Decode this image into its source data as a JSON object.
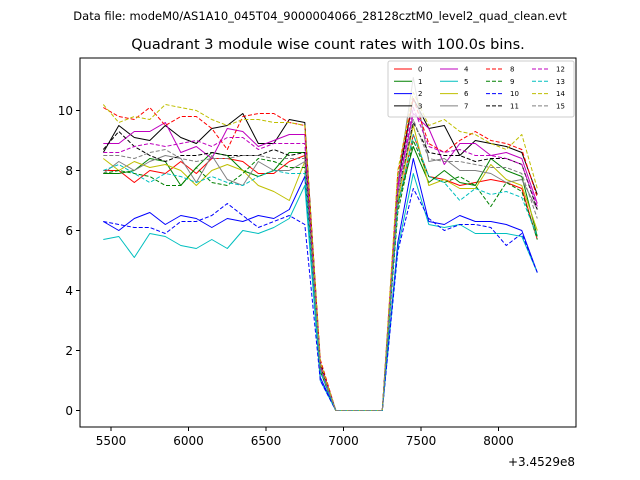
{
  "figure": {
    "suptitle": "Data file: modeM0/AS1A10_045T04_9000004066_28128cztM0_level2_quad_clean.evt"
  },
  "chart_data": {
    "type": "line",
    "title": "Quadrant 3 module wise count rates with 100.0s bins.",
    "xlabel": "",
    "ylabel": "",
    "x_offset_label": "+3.4529e8",
    "xlim": [
      5300,
      8500
    ],
    "ylim": [
      -0.55,
      11.75
    ],
    "xticks": [
      5500,
      6000,
      6500,
      7000,
      7500,
      8000
    ],
    "xtick_labels": [
      "5500",
      "6000",
      "6500",
      "7000",
      "7500",
      "8000"
    ],
    "yticks": [
      0,
      2,
      4,
      6,
      8,
      10
    ],
    "ytick_labels": [
      "0",
      "2",
      "4",
      "6",
      "8",
      "10"
    ],
    "grid": false,
    "legend_position": "top-right",
    "legend_columns": 4,
    "x": [
      5450,
      5550,
      5650,
      5750,
      5850,
      5950,
      6050,
      6150,
      6250,
      6350,
      6450,
      6550,
      6650,
      6750,
      6850,
      6950,
      7050,
      7150,
      7250,
      7350,
      7450,
      7550,
      7650,
      7750,
      7850,
      7950,
      8050,
      8150,
      8250
    ],
    "series": [
      {
        "name": "0",
        "color": "#ff0000",
        "dash": "solid",
        "values": [
          8.0,
          8.0,
          7.6,
          8.0,
          7.9,
          8.3,
          7.9,
          8.4,
          8.4,
          8.3,
          7.9,
          7.9,
          8.3,
          8.5,
          1.4,
          0.0,
          0.0,
          0.0,
          0.0,
          6.8,
          9.2,
          7.8,
          7.7,
          7.5,
          7.6,
          7.7,
          7.6,
          7.4,
          5.7
        ]
      },
      {
        "name": "1",
        "color": "#008000",
        "dash": "solid",
        "values": [
          7.9,
          7.9,
          8.0,
          8.4,
          8.3,
          7.5,
          8.1,
          8.6,
          8.5,
          8.0,
          7.8,
          8.0,
          8.6,
          8.6,
          1.3,
          0.0,
          0.0,
          0.0,
          0.0,
          6.9,
          8.8,
          7.6,
          8.0,
          7.6,
          7.5,
          8.4,
          8.0,
          7.8,
          5.8
        ]
      },
      {
        "name": "2",
        "color": "#0000ff",
        "dash": "solid",
        "values": [
          6.3,
          6.0,
          6.4,
          6.6,
          6.2,
          6.5,
          6.4,
          6.1,
          6.4,
          6.3,
          6.5,
          6.4,
          6.7,
          7.8,
          1.1,
          0.0,
          0.0,
          0.0,
          0.0,
          5.6,
          8.4,
          6.3,
          6.2,
          6.5,
          6.3,
          6.3,
          6.2,
          6.0,
          4.6
        ]
      },
      {
        "name": "3",
        "color": "#000000",
        "dash": "solid",
        "values": [
          8.6,
          9.5,
          9.1,
          9.0,
          9.5,
          9.1,
          8.9,
          9.4,
          9.5,
          9.9,
          8.9,
          8.9,
          9.7,
          9.6,
          1.6,
          0.0,
          0.0,
          0.0,
          0.0,
          7.6,
          10.4,
          9.4,
          9.5,
          8.5,
          9.0,
          8.9,
          8.8,
          8.6,
          7.2
        ]
      },
      {
        "name": "4",
        "color": "#bf00bf",
        "dash": "solid",
        "values": [
          8.9,
          8.9,
          9.3,
          9.3,
          9.6,
          8.6,
          8.8,
          8.4,
          9.4,
          9.3,
          8.8,
          9.0,
          9.2,
          9.2,
          1.5,
          0.0,
          0.0,
          0.0,
          0.0,
          7.4,
          9.9,
          9.4,
          8.2,
          8.9,
          8.9,
          8.5,
          8.6,
          8.4,
          6.9
        ]
      },
      {
        "name": "5",
        "color": "#00bfbf",
        "dash": "solid",
        "values": [
          5.7,
          5.8,
          5.1,
          5.9,
          5.8,
          5.5,
          5.4,
          5.7,
          5.4,
          6.0,
          5.9,
          6.1,
          6.4,
          7.5,
          1.0,
          0.0,
          0.0,
          0.0,
          0.0,
          5.4,
          7.9,
          6.2,
          6.1,
          6.2,
          5.9,
          5.9,
          5.9,
          5.8,
          4.6
        ]
      },
      {
        "name": "6",
        "color": "#bfbf00",
        "dash": "solid",
        "values": [
          8.4,
          8.0,
          8.3,
          8.1,
          8.2,
          8.0,
          7.5,
          8.0,
          8.2,
          8.0,
          7.5,
          7.3,
          7.0,
          8.3,
          1.4,
          0.0,
          0.0,
          0.0,
          0.0,
          7.0,
          9.5,
          7.5,
          7.7,
          7.4,
          7.4,
          8.2,
          7.7,
          7.5,
          6.0
        ]
      },
      {
        "name": "7",
        "color": "#808080",
        "dash": "solid",
        "values": [
          7.9,
          8.3,
          8.0,
          8.3,
          8.5,
          8.4,
          7.6,
          8.5,
          7.7,
          7.5,
          8.3,
          8.0,
          8.0,
          8.3,
          1.4,
          0.0,
          0.0,
          0.0,
          0.0,
          7.6,
          11.1,
          8.3,
          8.4,
          8.0,
          8.0,
          7.9,
          7.6,
          7.7,
          6.7
        ]
      },
      {
        "name": "8",
        "color": "#ff0000",
        "dash": "dashed",
        "values": [
          10.1,
          9.8,
          9.7,
          10.1,
          9.5,
          9.8,
          9.8,
          9.4,
          8.7,
          9.8,
          9.9,
          9.9,
          9.6,
          9.5,
          1.7,
          0.0,
          0.0,
          0.0,
          0.0,
          7.9,
          10.4,
          8.9,
          8.6,
          9.0,
          9.3,
          9.0,
          8.9,
          8.7,
          7.1
        ]
      },
      {
        "name": "9",
        "color": "#008000",
        "dash": "dashed",
        "values": [
          7.9,
          8.0,
          7.9,
          7.8,
          7.5,
          7.5,
          8.1,
          7.6,
          7.5,
          7.9,
          8.4,
          8.3,
          8.1,
          8.1,
          1.3,
          0.0,
          0.0,
          0.0,
          0.0,
          6.6,
          9.0,
          7.8,
          7.6,
          7.8,
          7.5,
          6.8,
          7.6,
          7.3,
          5.7
        ]
      },
      {
        "name": "10",
        "color": "#0000ff",
        "dash": "dashed",
        "values": [
          6.3,
          6.2,
          6.1,
          6.1,
          5.9,
          6.3,
          6.3,
          6.5,
          6.9,
          6.5,
          6.1,
          6.3,
          6.5,
          6.2,
          1.0,
          0.0,
          0.0,
          0.0,
          0.0,
          5.3,
          7.4,
          6.4,
          6.0,
          6.2,
          6.2,
          6.1,
          5.5,
          5.9,
          4.6
        ]
      },
      {
        "name": "11",
        "color": "#000000",
        "dash": "dashed",
        "values": [
          8.7,
          9.3,
          8.8,
          8.5,
          8.3,
          8.5,
          8.5,
          8.6,
          8.5,
          8.5,
          8.5,
          8.7,
          8.5,
          8.6,
          1.5,
          0.0,
          0.0,
          0.0,
          0.0,
          7.2,
          9.6,
          8.6,
          8.5,
          8.5,
          8.3,
          8.4,
          8.4,
          8.2,
          6.7
        ]
      },
      {
        "name": "12",
        "color": "#bf00bf",
        "dash": "dashed",
        "values": [
          8.6,
          8.6,
          8.8,
          8.9,
          8.8,
          8.9,
          9.0,
          8.8,
          9.1,
          9.1,
          8.7,
          8.9,
          8.9,
          8.9,
          1.5,
          0.0,
          0.0,
          0.0,
          0.0,
          7.5,
          10.1,
          8.8,
          8.6,
          8.7,
          8.5,
          8.5,
          8.4,
          8.2,
          6.8
        ]
      },
      {
        "name": "13",
        "color": "#00bfbf",
        "dash": "dashed",
        "values": [
          8.0,
          8.2,
          7.9,
          7.6,
          7.9,
          7.8,
          7.6,
          7.8,
          7.6,
          7.5,
          7.8,
          8.0,
          7.9,
          7.9,
          1.3,
          0.0,
          0.0,
          0.0,
          0.0,
          6.8,
          9.2,
          7.8,
          7.6,
          7.0,
          7.4,
          7.2,
          7.3,
          7.1,
          5.8
        ]
      },
      {
        "name": "14",
        "color": "#bfbf00",
        "dash": "dashed",
        "values": [
          10.2,
          9.6,
          9.8,
          9.7,
          10.2,
          10.1,
          10.0,
          9.7,
          9.5,
          9.7,
          9.7,
          9.6,
          9.6,
          9.5,
          1.6,
          0.0,
          0.0,
          0.0,
          0.0,
          8.0,
          10.6,
          9.5,
          9.7,
          9.3,
          9.2,
          8.9,
          8.7,
          9.2,
          7.4
        ]
      },
      {
        "name": "15",
        "color": "#808080",
        "dash": "dashed",
        "values": [
          8.5,
          8.5,
          8.4,
          8.6,
          8.7,
          8.4,
          8.3,
          8.4,
          8.4,
          8.5,
          8.5,
          8.4,
          8.4,
          8.4,
          1.4,
          0.0,
          0.0,
          0.0,
          0.0,
          7.2,
          9.7,
          8.4,
          8.3,
          8.3,
          8.2,
          8.1,
          8.1,
          7.9,
          6.4
        ]
      }
    ]
  }
}
